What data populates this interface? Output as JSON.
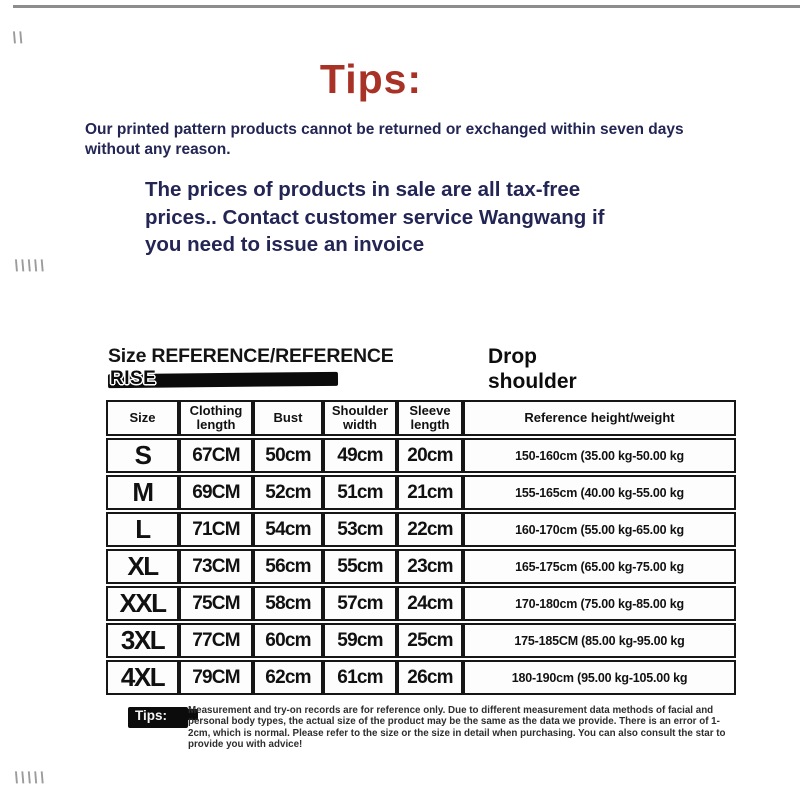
{
  "decor": {
    "top_marks": "\\\\",
    "middle_marks": "\\\\\\\\\\",
    "bottom_marks": "\\\\\\\\\\"
  },
  "tips_header": {
    "title": "Tips:",
    "title_color": "#a93226",
    "text_color": "#232554",
    "paragraph1": "Our printed pattern products cannot be returned or exchanged within seven days without any reason.",
    "paragraph2": "The prices of products in sale are all tax-free prices.. Contact customer service Wangwang if you need to issue an invoice"
  },
  "size_section": {
    "title_line1": "Size REFERENCE/REFERENCE",
    "title_line2": "RISE",
    "drop_shoulder": "Drop shoulder"
  },
  "size_table": {
    "headers": [
      "Size",
      "Clothing length",
      "Bust",
      "Shoulder width",
      "Sleeve length",
      "Reference height/weight"
    ],
    "rows": [
      [
        "S",
        "67CM",
        "50cm",
        "49cm",
        "20cm",
        "150-160cm (35.00 kg-50.00 kg"
      ],
      [
        "M",
        "69CM",
        "52cm",
        "51cm",
        "21cm",
        "155-165cm (40.00 kg-55.00 kg"
      ],
      [
        "L",
        "71CM",
        "54cm",
        "53cm",
        "22cm",
        "160-170cm (55.00 kg-65.00 kg"
      ],
      [
        "XL",
        "73CM",
        "56cm",
        "55cm",
        "23cm",
        "165-175cm (65.00 kg-75.00 kg"
      ],
      [
        "XXL",
        "75CM",
        "58cm",
        "57cm",
        "24cm",
        "170-180cm (75.00 kg-85.00 kg"
      ],
      [
        "3XL",
        "77CM",
        "60cm",
        "59cm",
        "25cm",
        "175-185CM (85.00 kg-95.00 kg"
      ],
      [
        "4XL",
        "79CM",
        "62cm",
        "61cm",
        "26cm",
        "180-190cm (95.00 kg-105.00 kg"
      ]
    ]
  },
  "footer_tips": {
    "label": "Tips:",
    "text": "Measurement and try-on records are for reference only. Due to different measurement data methods of facial and personal body types, the actual size of the product may be the same as the data we provide. There is an error of 1-2cm, which is normal. Please refer to the size or the size in detail when purchasing. You can also consult the star to provide you with advice!"
  }
}
